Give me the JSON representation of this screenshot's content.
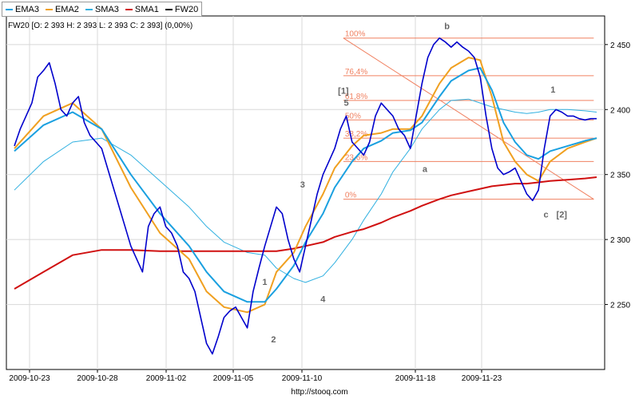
{
  "legend": [
    {
      "name": "EMA3",
      "color": "#1aa0e0"
    },
    {
      "name": "EMA2",
      "color": "#f0a020"
    },
    {
      "name": "SMA3",
      "color": "#30b0e0"
    },
    {
      "name": "SMA1",
      "color": "#d01010"
    },
    {
      "name": "FW20",
      "color": "#000000"
    }
  ],
  "quote_line": "FW20 [O: 2 393  H: 2 393  L: 2 393  C: 2 393] (0,00%)",
  "source_url": "http://stooq.com",
  "chart_data": {
    "type": "line",
    "title": "",
    "xlabel": "",
    "ylabel": "",
    "grid": true,
    "legend_position": "top-left",
    "x_ticks": [
      "2009-10-23",
      "2009-10-28",
      "2009-11-02",
      "2009-11-05",
      "2009-11-10",
      "2009-11-18",
      "2009-11-23"
    ],
    "y_ticks": [
      {
        "value": 2250,
        "label": "2 250"
      },
      {
        "value": 2300,
        "label": "2 300"
      },
      {
        "value": 2350,
        "label": "2 350"
      },
      {
        "value": 2400,
        "label": "2 400"
      },
      {
        "value": 2450,
        "label": "2 450"
      }
    ],
    "ylim": [
      2200,
      2472
    ],
    "x_range": [
      0,
      100
    ],
    "series": [
      {
        "name": "FW20",
        "color": "#0000cc",
        "x": [
          0,
          1,
          2,
          3,
          4,
          5,
          6,
          7,
          8,
          9,
          10,
          11,
          12,
          13,
          14,
          15,
          16,
          17,
          18,
          19,
          20,
          21,
          22,
          23,
          24,
          25,
          26,
          27,
          28,
          29,
          30,
          31,
          32,
          33,
          34,
          35,
          36,
          37,
          38,
          39,
          40,
          41,
          42,
          43,
          44,
          45,
          46,
          47,
          48,
          49,
          50,
          51,
          52,
          53,
          54,
          55,
          56,
          57,
          58,
          59,
          60,
          61,
          62,
          63,
          64,
          65,
          66,
          67,
          68,
          69,
          70,
          71,
          72,
          73,
          74,
          75,
          76,
          77,
          78,
          79,
          80,
          81,
          82,
          83,
          84,
          85,
          86,
          87,
          88,
          89,
          90,
          91,
          92,
          93,
          94,
          95,
          96,
          97,
          98,
          99,
          100
        ],
        "y": [
          2372,
          2385,
          2395,
          2405,
          2425,
          2430,
          2436,
          2420,
          2400,
          2395,
          2405,
          2410,
          2390,
          2380,
          2375,
          2370,
          2355,
          2340,
          2325,
          2310,
          2295,
          2285,
          2275,
          2310,
          2320,
          2325,
          2310,
          2305,
          2295,
          2275,
          2270,
          2260,
          2240,
          2220,
          2212,
          2225,
          2240,
          2245,
          2248,
          2240,
          2232,
          2260,
          2278,
          2295,
          2310,
          2325,
          2320,
          2300,
          2285,
          2275,
          2295,
          2315,
          2335,
          2350,
          2360,
          2370,
          2385,
          2395,
          2375,
          2370,
          2365,
          2375,
          2395,
          2405,
          2400,
          2395,
          2385,
          2380,
          2370,
          2395,
          2420,
          2440,
          2450,
          2455,
          2452,
          2448,
          2452,
          2448,
          2445,
          2440,
          2425,
          2395,
          2370,
          2355,
          2350,
          2352,
          2355,
          2345,
          2335,
          2330,
          2338,
          2370,
          2395,
          2400,
          2398,
          2395,
          2395,
          2393,
          2392,
          2393,
          2393
        ]
      },
      {
        "name": "EMA2",
        "color": "#f0a020",
        "x": [
          0,
          5,
          10,
          15,
          20,
          25,
          30,
          33,
          36,
          40,
          43,
          45,
          48,
          50,
          53,
          55,
          58,
          60,
          63,
          65,
          68,
          70,
          73,
          75,
          78,
          80,
          82,
          84,
          86,
          88,
          90,
          92,
          95,
          98,
          100
        ],
        "y": [
          2370,
          2395,
          2405,
          2385,
          2340,
          2305,
          2285,
          2260,
          2248,
          2244,
          2250,
          2275,
          2290,
          2310,
          2335,
          2355,
          2372,
          2380,
          2382,
          2385,
          2385,
          2395,
          2420,
          2432,
          2440,
          2438,
          2410,
          2375,
          2360,
          2350,
          2345,
          2360,
          2370,
          2375,
          2378
        ]
      },
      {
        "name": "EMA3",
        "color": "#1aa0e0",
        "x": [
          0,
          5,
          10,
          15,
          20,
          25,
          30,
          33,
          36,
          40,
          43,
          45,
          48,
          50,
          53,
          55,
          58,
          60,
          63,
          65,
          68,
          70,
          73,
          75,
          78,
          80,
          82,
          84,
          86,
          88,
          90,
          92,
          95,
          98,
          100
        ],
        "y": [
          2368,
          2388,
          2398,
          2385,
          2350,
          2320,
          2295,
          2275,
          2260,
          2252,
          2252,
          2262,
          2280,
          2298,
          2320,
          2340,
          2360,
          2370,
          2376,
          2382,
          2384,
          2390,
          2410,
          2422,
          2430,
          2432,
          2415,
          2390,
          2375,
          2365,
          2362,
          2368,
          2372,
          2376,
          2378
        ]
      },
      {
        "name": "SMA3",
        "color": "#30b0e0",
        "x": [
          0,
          5,
          10,
          15,
          20,
          25,
          30,
          33,
          36,
          40,
          43,
          45,
          48,
          50,
          53,
          55,
          58,
          60,
          63,
          65,
          68,
          70,
          73,
          75,
          78,
          80,
          82,
          84,
          86,
          88,
          90,
          92,
          95,
          98,
          100
        ],
        "y": [
          2338,
          2360,
          2375,
          2378,
          2365,
          2345,
          2325,
          2310,
          2298,
          2290,
          2288,
          2278,
          2270,
          2267,
          2272,
          2282,
          2300,
          2315,
          2335,
          2352,
          2370,
          2385,
          2400,
          2407,
          2408,
          2405,
          2402,
          2400,
          2398,
          2397,
          2398,
          2400,
          2400,
          2399,
          2398
        ]
      },
      {
        "name": "SMA1",
        "color": "#d01010",
        "x": [
          0,
          5,
          10,
          15,
          20,
          25,
          30,
          33,
          36,
          40,
          43,
          45,
          48,
          50,
          53,
          55,
          58,
          60,
          63,
          65,
          68,
          70,
          73,
          75,
          78,
          80,
          82,
          84,
          86,
          88,
          90,
          92,
          95,
          98,
          100
        ],
        "y": [
          2262,
          2275,
          2288,
          2292,
          2292,
          2291,
          2291,
          2291,
          2291,
          2291,
          2291,
          2291,
          2293,
          2295,
          2298,
          2302,
          2306,
          2308,
          2313,
          2317,
          2322,
          2326,
          2331,
          2334,
          2337,
          2339,
          2341,
          2342,
          2343,
          2343,
          2344,
          2345,
          2346,
          2347,
          2348
        ]
      }
    ],
    "fibonacci": {
      "color": "#f08060",
      "levels": [
        {
          "label": "100%",
          "value": 2455
        },
        {
          "label": "76,4%",
          "value": 2426
        },
        {
          "label": "61,8%",
          "value": 2407
        },
        {
          "label": "50%",
          "value": 2392
        },
        {
          "label": "38,2%",
          "value": 2378
        },
        {
          "label": "23,6%",
          "value": 2360
        },
        {
          "label": "0%",
          "value": 2331
        }
      ]
    },
    "annotations": [
      {
        "text": "1",
        "x": 43,
        "y": 2265
      },
      {
        "text": "2",
        "x": 44.5,
        "y": 2221
      },
      {
        "text": "3",
        "x": 49.5,
        "y": 2340
      },
      {
        "text": "4",
        "x": 53,
        "y": 2252
      },
      {
        "text": "[1]",
        "x": 56.5,
        "y": 2412
      },
      {
        "text": "5",
        "x": 57,
        "y": 2403
      },
      {
        "text": "a",
        "x": 70.5,
        "y": 2352
      },
      {
        "text": "b",
        "x": 74.3,
        "y": 2462
      },
      {
        "text": "1",
        "x": 92.5,
        "y": 2413
      },
      {
        "text": "c",
        "x": 91.3,
        "y": 2317
      },
      {
        "text": "[2]",
        "x": 94,
        "y": 2317
      }
    ]
  }
}
